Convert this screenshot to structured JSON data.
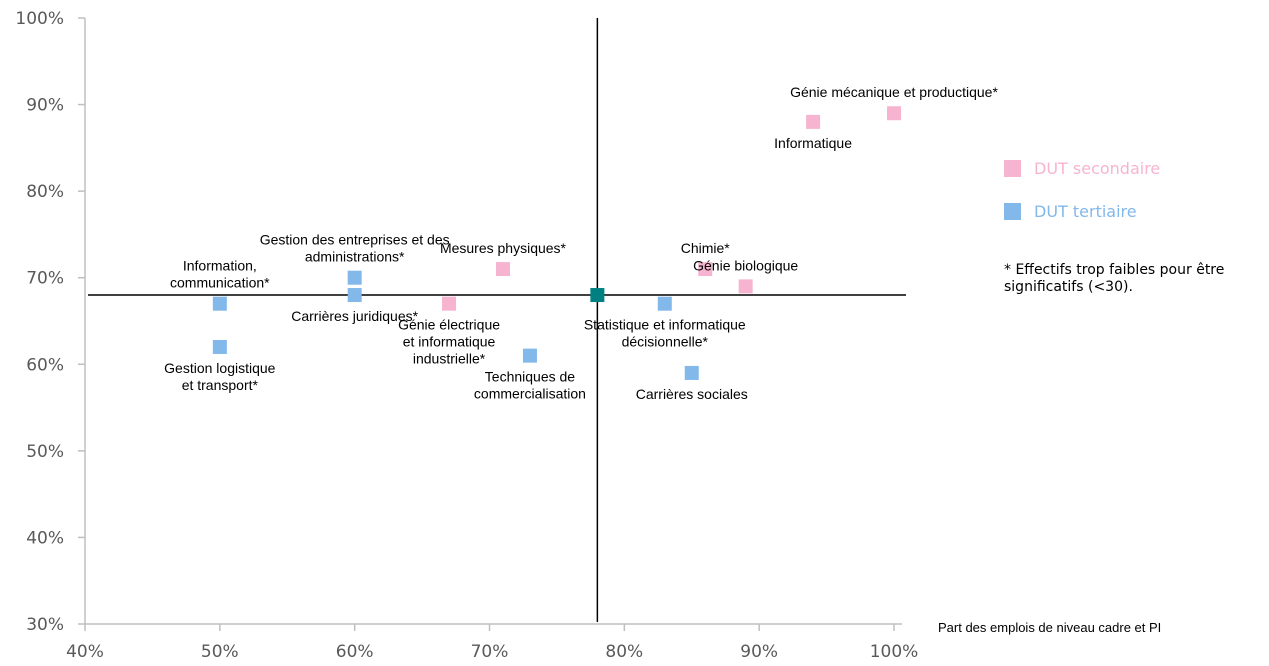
{
  "chart_data": {
    "type": "scatter",
    "xlabel": "Part des emplois de niveau cadre et PI",
    "ylabel": "",
    "xlim": [
      0.4,
      1.0
    ],
    "ylim": [
      0.3,
      1.0
    ],
    "x_ticks": [
      {
        "value": 0.4,
        "label": "40%"
      },
      {
        "value": 0.5,
        "label": "50%"
      },
      {
        "value": 0.6,
        "label": "60%"
      },
      {
        "value": 0.7,
        "label": "70%"
      },
      {
        "value": 0.8,
        "label": "80%"
      },
      {
        "value": 0.9,
        "label": "90%"
      },
      {
        "value": 1.0,
        "label": "100%"
      }
    ],
    "y_ticks": [
      {
        "value": 0.3,
        "label": "30%"
      },
      {
        "value": 0.4,
        "label": "40%"
      },
      {
        "value": 0.5,
        "label": "50%"
      },
      {
        "value": 0.6,
        "label": "60%"
      },
      {
        "value": 0.7,
        "label": "70%"
      },
      {
        "value": 0.8,
        "label": "80%"
      },
      {
        "value": 0.9,
        "label": "90%"
      },
      {
        "value": 1.0,
        "label": "100%"
      }
    ],
    "crosshair": {
      "x": 0.78,
      "y": 0.68,
      "color": "#008080"
    },
    "grid": false,
    "legend_position": "right",
    "series": [
      {
        "name": "DUT secondaire",
        "color": "#f7b4d0",
        "points": [
          {
            "x": 1.0,
            "y": 0.89,
            "label": "Génie mécanique et productique*",
            "label_pos": "above"
          },
          {
            "x": 0.94,
            "y": 0.88,
            "label": "Informatique",
            "label_pos": "below"
          },
          {
            "x": 0.71,
            "y": 0.71,
            "label": "Mesures physiques*",
            "label_pos": "above"
          },
          {
            "x": 0.86,
            "y": 0.71,
            "label": "Chimie*",
            "label_pos": "above"
          },
          {
            "x": 0.89,
            "y": 0.69,
            "label": "Génie biologique",
            "label_pos": "above"
          },
          {
            "x": 0.67,
            "y": 0.67,
            "label": "Génie électrique\net informatique\nindustrielle*",
            "label_pos": "below"
          }
        ]
      },
      {
        "name": "DUT tertiaire",
        "color": "#82b8ea",
        "points": [
          {
            "x": 0.6,
            "y": 0.7,
            "label": "Gestion des entreprises et des\nadministrations*",
            "label_pos": "above"
          },
          {
            "x": 0.6,
            "y": 0.68,
            "label": "Carrières juridiques*",
            "label_pos": "below"
          },
          {
            "x": 0.5,
            "y": 0.67,
            "label": "Information,\ncommunication*",
            "label_pos": "above"
          },
          {
            "x": 0.5,
            "y": 0.62,
            "label": "Gestion logistique\net transport*",
            "label_pos": "below"
          },
          {
            "x": 0.73,
            "y": 0.61,
            "label": "Techniques de\ncommercialisation",
            "label_pos": "below"
          },
          {
            "x": 0.83,
            "y": 0.67,
            "label": "Statistique et informatique\ndécisionnelle*",
            "label_pos": "below"
          },
          {
            "x": 0.85,
            "y": 0.59,
            "label": "Carrières sociales",
            "label_pos": "below"
          }
        ]
      }
    ]
  },
  "legend": {
    "items": [
      {
        "label": "DUT secondaire",
        "color": "#f7b4d0"
      },
      {
        "label": "DUT tertiaire",
        "color": "#82b8ea"
      }
    ]
  },
  "footnote": "* Effectifs trop faibles pour être significatifs (<30)."
}
